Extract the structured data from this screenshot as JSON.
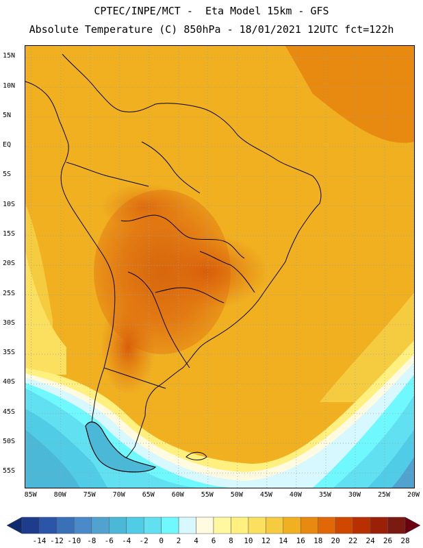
{
  "header": {
    "line1": "CPTEC/INPE/MCT -  Eta Model 15km - GFS",
    "line2": "Absolute Temperature (C) 850hPa - 18/01/2021 12UTC fct=122h"
  },
  "map": {
    "lat_labels": [
      "15N",
      "10N",
      "5N",
      "EQ",
      "5S",
      "10S",
      "15S",
      "20S",
      "25S",
      "30S",
      "35S",
      "40S",
      "45S",
      "50S",
      "55S"
    ],
    "lat_values": [
      15,
      10,
      5,
      0,
      -5,
      -10,
      -15,
      -20,
      -25,
      -30,
      -35,
      -40,
      -45,
      -50,
      -55
    ],
    "lon_labels": [
      "85W",
      "80W",
      "75W",
      "70W",
      "65W",
      "60W",
      "55W",
      "50W",
      "45W",
      "40W",
      "35W",
      "30W",
      "25W",
      "20W"
    ],
    "lon_values": [
      -85,
      -80,
      -75,
      -70,
      -65,
      -60,
      -55,
      -50,
      -45,
      -40,
      -35,
      -30,
      -25,
      -20
    ],
    "lat_range": [
      -57.5,
      17
    ],
    "lon_range": [
      -86,
      -20
    ]
  },
  "colorbar": {
    "labels": [
      "-14",
      "-12",
      "-10",
      "-8",
      "-6",
      "-4",
      "-2",
      "0",
      "2",
      "4",
      "6",
      "8",
      "10",
      "12",
      "14",
      "16",
      "18",
      "20",
      "22",
      "24",
      "26",
      "28"
    ],
    "colors": [
      "#1e3c8c",
      "#2a55a8",
      "#3a70b8",
      "#4a8ac8",
      "#52a2d0",
      "#4cb8d8",
      "#50cce6",
      "#60e0f0",
      "#70f8ff",
      "#d8f8ff",
      "#fffae0",
      "#fff8a0",
      "#fff080",
      "#fbe060",
      "#f5cc40",
      "#f0b020",
      "#e88a10",
      "#e06808",
      "#d04800",
      "#b83000",
      "#9a2008",
      "#7a1a10"
    ],
    "low_color": "#102a70",
    "high_color": "#6a0010"
  }
}
